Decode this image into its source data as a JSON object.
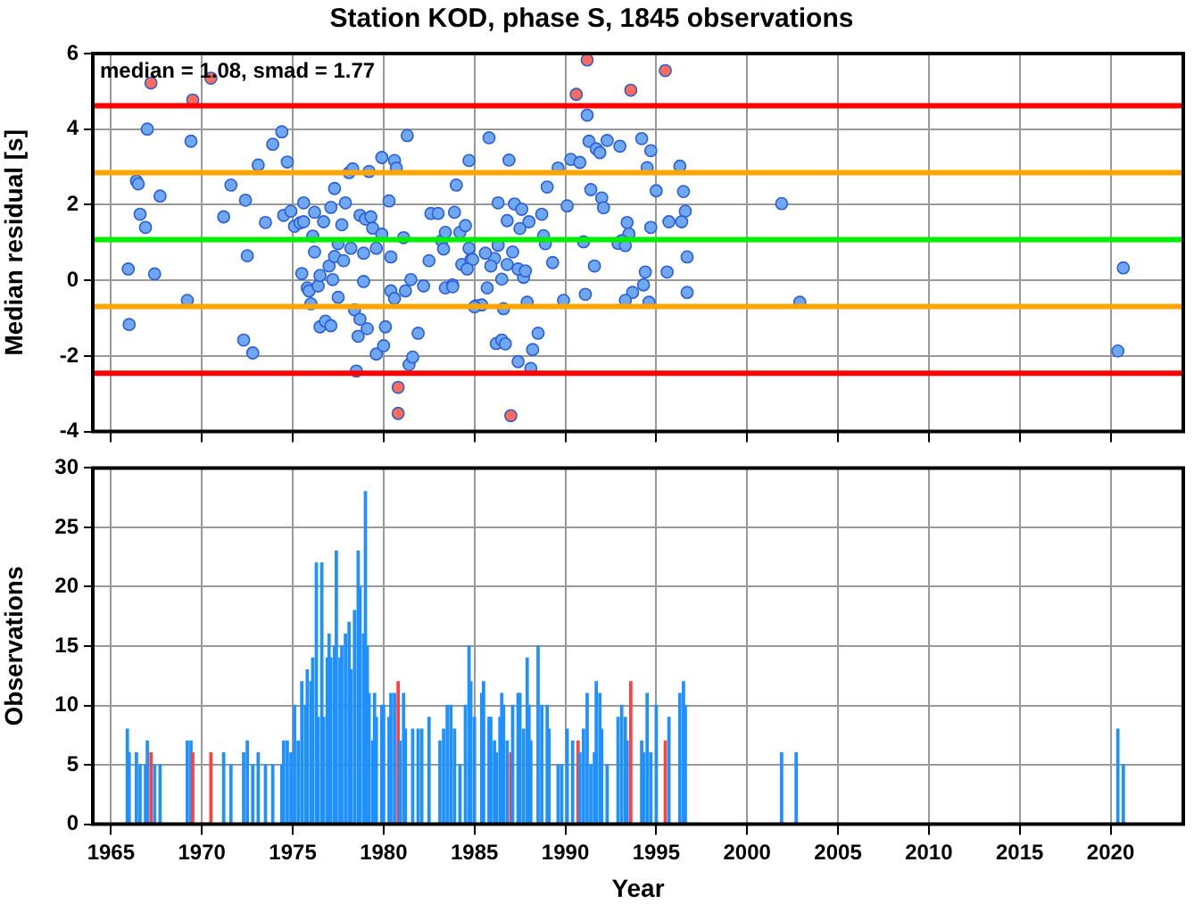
{
  "chart_data": [
    {
      "type": "scatter",
      "title": "Station KOD, phase S, 1845 observations",
      "ylabel": "Median residual [s]",
      "annotations": [
        "median = 1.08, smad = 1.77"
      ],
      "marker": "circle",
      "grid": true,
      "tick_labels": "y",
      "xlim": [
        1964,
        2024
      ],
      "xticks": [
        1965,
        1970,
        1975,
        1980,
        1985,
        1990,
        1995,
        2000,
        2005,
        2010,
        2015,
        2020
      ],
      "ylim": [
        -4,
        6
      ],
      "yticks": [
        -4,
        -2,
        0,
        2,
        4,
        6
      ],
      "ref_lines": [
        {
          "axis": "y",
          "value": 4.62,
          "color": "#ff0000"
        },
        {
          "axis": "y",
          "value": 2.85,
          "color": "#ffa500"
        },
        {
          "axis": "y",
          "value": 1.08,
          "color": "#00ee00"
        },
        {
          "axis": "y",
          "value": -0.69,
          "color": "#ffa500"
        },
        {
          "axis": "y",
          "value": -2.46,
          "color": "#ff0000"
        }
      ],
      "series": [
        {
          "color": "#6fa8f0",
          "x": [
            1965.95,
            1966.0,
            1966.4,
            1966.5,
            1967.0,
            1966.6,
            1966.9,
            1967.4,
            1967.7,
            1969.2,
            1969.4,
            1971.2,
            1971.6,
            1972.3,
            1972.4,
            1972.5,
            1972.8,
            1973.1,
            1973.5,
            1973.9,
            1974.4,
            1974.7,
            1974.5,
            1974.9,
            1975.1,
            1975.4,
            1975.6,
            1975.6,
            1975.5,
            1975.8,
            1975.9,
            1976.0,
            1976.1,
            1976.2,
            1976.2,
            1976.4,
            1976.5,
            1976.7,
            1976.5,
            1976.8,
            1977.1,
            1977.0,
            1977.1,
            1977.2,
            1977.3,
            1977.3,
            1977.5,
            1977.5,
            1977.7,
            1977.8,
            1977.9,
            1978.1,
            1978.2,
            1978.3,
            1978.4,
            1978.5,
            1978.6,
            1978.7,
            1978.7,
            1978.9,
            1978.9,
            1979.0,
            1979.1,
            1979.2,
            1979.3,
            1979.4,
            1979.6,
            1979.6,
            1979.9,
            1979.9,
            1980.0,
            1980.1,
            1980.3,
            1980.4,
            1980.4,
            1980.6,
            1980.6,
            1980.7,
            1981.1,
            1981.3,
            1981.2,
            1981.5,
            1981.4,
            1981.6,
            1981.9,
            1982.2,
            1982.5,
            1982.6,
            1983.0,
            1983.2,
            1983.3,
            1983.4,
            1983.4,
            1983.8,
            1983.9,
            1984.0,
            1984.2,
            1984.3,
            1984.5,
            1984.7,
            1984.7,
            1984.8,
            1985.1,
            1985.8,
            1986.9,
            1986.3,
            1986.8,
            1987.2,
            1987.6,
            1987.5,
            1988.0,
            1988.7,
            1989.0,
            1989.6,
            1990.1,
            1990.3,
            1990.8,
            1991.2,
            1991.3,
            1991.7,
            1991.9,
            1992.3,
            1993.0,
            1994.2,
            1994.7,
            1994.5,
            1995.0,
            1996.3,
            1996.5,
            1996.6,
            1996.4,
            1995.7,
            1994.7,
            1993.4,
            1993.5,
            1993.1,
            1992.9,
            1993.3,
            1991.0,
            1991.4,
            1992.0,
            1992.1,
            1996.7,
            1995.6,
            1994.4,
            1991.6,
            1994.3,
            1993.7,
            1993.3,
            1994.6,
            1996.7,
            1991.1,
            1989.9,
            1987.9,
            1986.6,
            1985.4,
            1985.0,
            1985.7,
            1986.5,
            1987.7,
            1987.4,
            1987.8,
            1986.8,
            1989.3,
            1987.1,
            1986.1,
            1985.9,
            1985.6,
            1984.9,
            1984.6,
            1983.8,
            1988.9,
            1988.8,
            1986.3,
            1988.5,
            1988.2,
            1987.4,
            1988.1,
            1986.2,
            1986.5,
            1986.7,
            2001.9,
            2002.9,
            2020.4,
            2020.7
          ],
          "values": [
            0.3,
            -1.17,
            2.63,
            2.55,
            4.0,
            1.75,
            1.4,
            0.17,
            2.23,
            -0.53,
            3.68,
            1.68,
            2.52,
            -1.58,
            2.12,
            0.65,
            -1.92,
            3.05,
            1.53,
            3.6,
            3.93,
            3.13,
            1.72,
            1.83,
            1.43,
            1.52,
            1.55,
            2.05,
            0.18,
            -0.2,
            -0.28,
            -0.62,
            1.17,
            0.75,
            1.8,
            -0.15,
            0.13,
            1.55,
            -1.23,
            -1.08,
            -1.2,
            0.38,
            1.93,
            0.02,
            0.63,
            2.43,
            0.97,
            -0.45,
            1.47,
            0.52,
            2.05,
            2.85,
            0.85,
            2.95,
            -0.78,
            -2.4,
            -1.48,
            -1.03,
            1.72,
            -0.03,
            0.72,
            1.62,
            -1.28,
            2.88,
            1.68,
            1.38,
            0.85,
            -1.95,
            1.22,
            3.25,
            -1.73,
            -1.23,
            2.1,
            0.62,
            -0.28,
            -0.48,
            3.17,
            2.97,
            1.13,
            3.83,
            -0.28,
            0.02,
            -2.23,
            -2.03,
            -1.4,
            -0.15,
            0.52,
            1.77,
            1.77,
            1.05,
            0.83,
            1.27,
            -0.2,
            -0.12,
            1.8,
            2.52,
            1.27,
            0.42,
            1.45,
            3.17,
            0.85,
            0.55,
            -0.67,
            3.77,
            3.18,
            2.05,
            1.58,
            2.02,
            1.88,
            1.37,
            1.55,
            1.75,
            2.47,
            2.97,
            1.97,
            3.2,
            3.12,
            4.37,
            3.68,
            3.48,
            3.38,
            3.7,
            3.55,
            3.75,
            3.43,
            2.98,
            2.37,
            3.02,
            2.35,
            1.83,
            1.55,
            1.55,
            1.4,
            1.53,
            1.23,
            1.05,
            0.98,
            0.92,
            1.02,
            2.4,
            2.18,
            1.92,
            0.62,
            0.22,
            0.22,
            0.38,
            -0.12,
            -0.32,
            -0.53,
            -0.58,
            -0.32,
            -0.37,
            -0.53,
            -0.58,
            -0.75,
            -0.65,
            -0.7,
            -0.2,
            0.03,
            0.08,
            0.3,
            0.25,
            0.42,
            0.47,
            0.75,
            0.58,
            0.38,
            0.72,
            0.55,
            0.3,
            -0.17,
            0.97,
            1.18,
            0.93,
            -1.4,
            -1.83,
            -2.15,
            -2.33,
            -1.67,
            -1.58,
            -1.68,
            2.03,
            -0.58,
            -1.87,
            0.33
          ]
        },
        {
          "color": "#ff6a5a",
          "x": [
            1967.2,
            1969.5,
            1970.5,
            1980.8,
            1980.8,
            1987.0,
            1990.6,
            1991.2,
            1993.6,
            1995.5
          ],
          "values": [
            5.22,
            4.77,
            5.35,
            -2.83,
            -3.52,
            -3.58,
            4.92,
            5.83,
            5.03,
            5.55
          ]
        }
      ]
    },
    {
      "type": "bar",
      "xlabel": "Year",
      "ylabel": "Observations",
      "grid": true,
      "xlim": [
        1964,
        2024
      ],
      "xticks": [
        1965,
        1970,
        1975,
        1980,
        1985,
        1990,
        1995,
        2000,
        2005,
        2010,
        2015,
        2020
      ],
      "ylim": [
        0,
        30
      ],
      "yticks": [
        0,
        5,
        10,
        15,
        20,
        25,
        30
      ],
      "x": [
        1965.9,
        1966.0,
        1966.4,
        1966.6,
        1966.9,
        1967.0,
        1967.2,
        1967.4,
        1967.7,
        1969.2,
        1969.4,
        1969.5,
        1970.5,
        1971.2,
        1971.6,
        1972.3,
        1972.5,
        1972.8,
        1973.1,
        1973.5,
        1973.9,
        1974.4,
        1974.5,
        1974.7,
        1974.9,
        1975.1,
        1975.3,
        1975.5,
        1975.7,
        1975.8,
        1976.0,
        1976.1,
        1976.3,
        1976.4,
        1976.6,
        1976.7,
        1976.9,
        1977.0,
        1977.1,
        1977.3,
        1977.4,
        1977.6,
        1977.7,
        1977.9,
        1978.1,
        1978.2,
        1978.4,
        1978.6,
        1978.7,
        1978.9,
        1979.0,
        1979.1,
        1979.2,
        1979.4,
        1979.5,
        1979.6,
        1979.9,
        1980.0,
        1980.3,
        1980.4,
        1980.6,
        1980.8,
        1980.9,
        1981.1,
        1981.2,
        1981.6,
        1981.9,
        1982.1,
        1982.5,
        1983.1,
        1983.3,
        1983.5,
        1983.7,
        1983.9,
        1984.2,
        1984.5,
        1984.7,
        1984.8,
        1985.0,
        1985.4,
        1985.5,
        1985.8,
        1985.9,
        1986.1,
        1986.2,
        1986.4,
        1986.5,
        1986.6,
        1986.8,
        1987.0,
        1987.1,
        1987.4,
        1987.5,
        1987.7,
        1987.9,
        1988.0,
        1988.1,
        1988.5,
        1988.7,
        1989.0,
        1989.1,
        1989.6,
        1989.8,
        1990.1,
        1990.4,
        1990.7,
        1990.8,
        1991.0,
        1991.2,
        1991.4,
        1991.6,
        1991.7,
        1991.9,
        1992.0,
        1992.3,
        1992.9,
        1993.1,
        1993.3,
        1993.4,
        1993.6,
        1994.2,
        1994.3,
        1994.5,
        1994.7,
        1995.0,
        1995.5,
        1995.7,
        1996.3,
        1996.5,
        1996.6,
        2001.9,
        2002.7,
        2020.4,
        2020.7
      ],
      "values": [
        8,
        6,
        6,
        5,
        5,
        7,
        6,
        5,
        5,
        7,
        7,
        6,
        6,
        6,
        5,
        6,
        7,
        5,
        6,
        5,
        5,
        5,
        7,
        7,
        6,
        10,
        7,
        12,
        10,
        13,
        12,
        14,
        22,
        9,
        22,
        9,
        14,
        16,
        14,
        15,
        23,
        14,
        15,
        16,
        17,
        13,
        18,
        23,
        20,
        16,
        28,
        15,
        11,
        7,
        11,
        9,
        10,
        10,
        9,
        11,
        11,
        12,
        7,
        11,
        8,
        8,
        8,
        8,
        9,
        7,
        8,
        10,
        10,
        8,
        5,
        10,
        15,
        12,
        9,
        11,
        12,
        9,
        9,
        7,
        6,
        9,
        11,
        10,
        7,
        6,
        10,
        11,
        11,
        8,
        14,
        10,
        7,
        15,
        10,
        10,
        8,
        5,
        5,
        8,
        7,
        7,
        6,
        8,
        11,
        5,
        6,
        12,
        11,
        8,
        5,
        9,
        10,
        9,
        7,
        12,
        7,
        6,
        11,
        6,
        10,
        7,
        9,
        11,
        12,
        10,
        6,
        6,
        8,
        5
      ],
      "colors": [
        "#1e90ff",
        "#1e90ff",
        "#1e90ff",
        "#1e90ff",
        "#1e90ff",
        "#1e90ff",
        "#ff4040",
        "#1e90ff",
        "#1e90ff",
        "#1e90ff",
        "#1e90ff",
        "#ff4040",
        "#ff4040",
        "#1e90ff",
        "#1e90ff",
        "#1e90ff",
        "#1e90ff",
        "#1e90ff",
        "#1e90ff",
        "#1e90ff",
        "#1e90ff",
        "#1e90ff",
        "#1e90ff",
        "#1e90ff",
        "#1e90ff",
        "#1e90ff",
        "#1e90ff",
        "#1e90ff",
        "#1e90ff",
        "#1e90ff",
        "#1e90ff",
        "#1e90ff",
        "#1e90ff",
        "#1e90ff",
        "#1e90ff",
        "#1e90ff",
        "#1e90ff",
        "#1e90ff",
        "#1e90ff",
        "#1e90ff",
        "#1e90ff",
        "#1e90ff",
        "#1e90ff",
        "#1e90ff",
        "#1e90ff",
        "#1e90ff",
        "#1e90ff",
        "#1e90ff",
        "#1e90ff",
        "#1e90ff",
        "#1e90ff",
        "#1e90ff",
        "#1e90ff",
        "#1e90ff",
        "#1e90ff",
        "#1e90ff",
        "#1e90ff",
        "#1e90ff",
        "#1e90ff",
        "#1e90ff",
        "#1e90ff",
        "#ff4040",
        "#1e90ff",
        "#1e90ff",
        "#1e90ff",
        "#1e90ff",
        "#1e90ff",
        "#1e90ff",
        "#1e90ff",
        "#1e90ff",
        "#1e90ff",
        "#1e90ff",
        "#1e90ff",
        "#1e90ff",
        "#1e90ff",
        "#1e90ff",
        "#1e90ff",
        "#1e90ff",
        "#1e90ff",
        "#1e90ff",
        "#1e90ff",
        "#1e90ff",
        "#1e90ff",
        "#1e90ff",
        "#1e90ff",
        "#1e90ff",
        "#1e90ff",
        "#1e90ff",
        "#1e90ff",
        "#ff4040",
        "#1e90ff",
        "#1e90ff",
        "#1e90ff",
        "#1e90ff",
        "#1e90ff",
        "#1e90ff",
        "#1e90ff",
        "#1e90ff",
        "#1e90ff",
        "#1e90ff",
        "#1e90ff",
        "#1e90ff",
        "#1e90ff",
        "#1e90ff",
        "#1e90ff",
        "#ff4040",
        "#1e90ff",
        "#1e90ff",
        "#1e90ff",
        "#1e90ff",
        "#1e90ff",
        "#1e90ff",
        "#1e90ff",
        "#1e90ff",
        "#1e90ff",
        "#1e90ff",
        "#1e90ff",
        "#1e90ff",
        "#1e90ff",
        "#ff4040",
        "#1e90ff",
        "#1e90ff",
        "#1e90ff",
        "#1e90ff",
        "#1e90ff",
        "#ff4040",
        "#1e90ff",
        "#1e90ff",
        "#1e90ff",
        "#1e90ff",
        "#1e90ff",
        "#1e90ff",
        "#1e90ff",
        "#1e90ff"
      ]
    }
  ]
}
